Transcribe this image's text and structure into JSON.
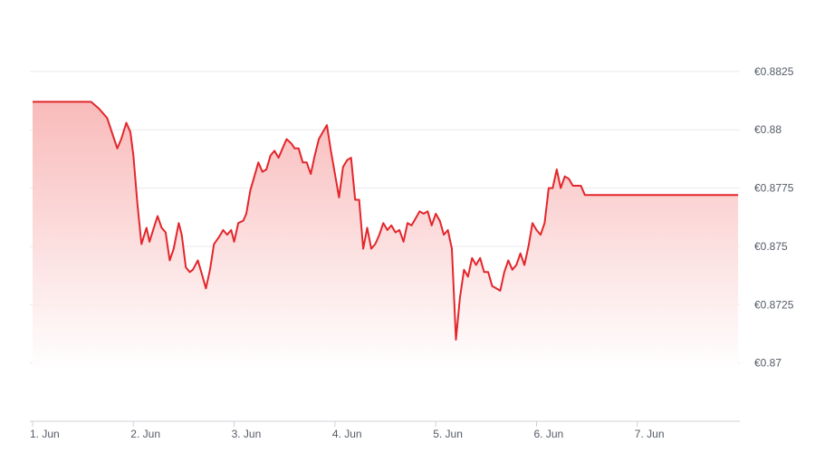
{
  "colors": {
    "line": "#e3262b",
    "fill_top": "#f8b3b3",
    "fill_bottom": "#ffffff",
    "grid": "#e9e9ec",
    "axis": "#cfd2d8",
    "label": "#555b66"
  },
  "chart_data": {
    "type": "area",
    "title": "",
    "xlabel": "",
    "ylabel": "",
    "ylim": [
      0.8675,
      0.8837
    ],
    "xlim": [
      1.0,
      8.0
    ],
    "grid": true,
    "legend": "none",
    "y_axis_side": "right",
    "y_ticks": [
      0.87,
      0.8725,
      0.875,
      0.8775,
      0.88,
      0.8825
    ],
    "y_tick_labels": [
      "€0.87",
      "€0.8725",
      "€0.875",
      "€0.8775",
      "€0.88",
      "€0.8825"
    ],
    "x_ticks": [
      1,
      2,
      3,
      4,
      5,
      6,
      7
    ],
    "x_tick_labels": [
      "1. Jun",
      "2. Jun",
      "3. Jun",
      "4. Jun",
      "5. Jun",
      "6. Jun",
      "7. Jun"
    ],
    "series": [
      {
        "values": [
          [
            1.0,
            0.8812
          ],
          [
            1.58,
            0.8812
          ],
          [
            1.66,
            0.8809
          ],
          [
            1.74,
            0.8805
          ],
          [
            1.84,
            0.8792
          ],
          [
            1.88,
            0.8796
          ],
          [
            1.93,
            0.8803
          ],
          [
            1.97,
            0.8799
          ],
          [
            2.0,
            0.8789
          ],
          [
            2.04,
            0.8768
          ],
          [
            2.08,
            0.8751
          ],
          [
            2.13,
            0.8758
          ],
          [
            2.16,
            0.8752
          ],
          [
            2.21,
            0.8759
          ],
          [
            2.24,
            0.8763
          ],
          [
            2.28,
            0.8758
          ],
          [
            2.32,
            0.8756
          ],
          [
            2.36,
            0.8744
          ],
          [
            2.4,
            0.8749
          ],
          [
            2.45,
            0.876
          ],
          [
            2.48,
            0.8755
          ],
          [
            2.52,
            0.8741
          ],
          [
            2.56,
            0.8739
          ],
          [
            2.59,
            0.874
          ],
          [
            2.64,
            0.8744
          ],
          [
            2.68,
            0.8738
          ],
          [
            2.72,
            0.8732
          ],
          [
            2.76,
            0.874
          ],
          [
            2.8,
            0.8751
          ],
          [
            2.85,
            0.8754
          ],
          [
            2.89,
            0.8757
          ],
          [
            2.93,
            0.8755
          ],
          [
            2.97,
            0.8757
          ],
          [
            3.0,
            0.8752
          ],
          [
            3.04,
            0.876
          ],
          [
            3.09,
            0.8761
          ],
          [
            3.12,
            0.8764
          ],
          [
            3.16,
            0.8774
          ],
          [
            3.2,
            0.878
          ],
          [
            3.24,
            0.8786
          ],
          [
            3.28,
            0.8782
          ],
          [
            3.32,
            0.8783
          ],
          [
            3.36,
            0.8789
          ],
          [
            3.4,
            0.8791
          ],
          [
            3.44,
            0.8788
          ],
          [
            3.48,
            0.8792
          ],
          [
            3.52,
            0.8796
          ],
          [
            3.57,
            0.8794
          ],
          [
            3.6,
            0.8792
          ],
          [
            3.64,
            0.8792
          ],
          [
            3.68,
            0.8786
          ],
          [
            3.72,
            0.8786
          ],
          [
            3.76,
            0.8781
          ],
          [
            3.8,
            0.8789
          ],
          [
            3.84,
            0.8796
          ],
          [
            3.88,
            0.8799
          ],
          [
            3.92,
            0.8802
          ],
          [
            3.96,
            0.8791
          ],
          [
            4.0,
            0.8781
          ],
          [
            4.04,
            0.8771
          ],
          [
            4.08,
            0.8784
          ],
          [
            4.12,
            0.8787
          ],
          [
            4.16,
            0.8788
          ],
          [
            4.2,
            0.877
          ],
          [
            4.24,
            0.877
          ],
          [
            4.28,
            0.8749
          ],
          [
            4.32,
            0.8758
          ],
          [
            4.36,
            0.8749
          ],
          [
            4.4,
            0.8751
          ],
          [
            4.44,
            0.8755
          ],
          [
            4.48,
            0.876
          ],
          [
            4.52,
            0.8757
          ],
          [
            4.56,
            0.8759
          ],
          [
            4.6,
            0.8756
          ],
          [
            4.64,
            0.8757
          ],
          [
            4.68,
            0.8752
          ],
          [
            4.72,
            0.876
          ],
          [
            4.76,
            0.8759
          ],
          [
            4.8,
            0.8762
          ],
          [
            4.84,
            0.8765
          ],
          [
            4.88,
            0.8764
          ],
          [
            4.92,
            0.8765
          ],
          [
            4.96,
            0.8759
          ],
          [
            5.0,
            0.8764
          ],
          [
            5.04,
            0.8761
          ],
          [
            5.08,
            0.8755
          ],
          [
            5.12,
            0.8757
          ],
          [
            5.16,
            0.8749
          ],
          [
            5.2,
            0.871
          ],
          [
            5.24,
            0.8728
          ],
          [
            5.28,
            0.874
          ],
          [
            5.32,
            0.8737
          ],
          [
            5.36,
            0.8745
          ],
          [
            5.4,
            0.8742
          ],
          [
            5.44,
            0.8745
          ],
          [
            5.48,
            0.8739
          ],
          [
            5.52,
            0.8739
          ],
          [
            5.56,
            0.8733
          ],
          [
            5.6,
            0.8732
          ],
          [
            5.64,
            0.8731
          ],
          [
            5.68,
            0.8739
          ],
          [
            5.72,
            0.8744
          ],
          [
            5.76,
            0.874
          ],
          [
            5.8,
            0.8742
          ],
          [
            5.84,
            0.8747
          ],
          [
            5.88,
            0.8742
          ],
          [
            5.92,
            0.875
          ],
          [
            5.96,
            0.876
          ],
          [
            6.0,
            0.8757
          ],
          [
            6.04,
            0.8755
          ],
          [
            6.08,
            0.876
          ],
          [
            6.12,
            0.8775
          ],
          [
            6.16,
            0.8775
          ],
          [
            6.2,
            0.8783
          ],
          [
            6.24,
            0.8775
          ],
          [
            6.28,
            0.878
          ],
          [
            6.32,
            0.8779
          ],
          [
            6.36,
            0.8776
          ],
          [
            6.4,
            0.8776
          ],
          [
            6.44,
            0.8776
          ],
          [
            6.48,
            0.8772
          ],
          [
            7.0,
            0.8772
          ],
          [
            7.5,
            0.8772
          ],
          [
            8.0,
            0.8772
          ]
        ]
      }
    ]
  }
}
